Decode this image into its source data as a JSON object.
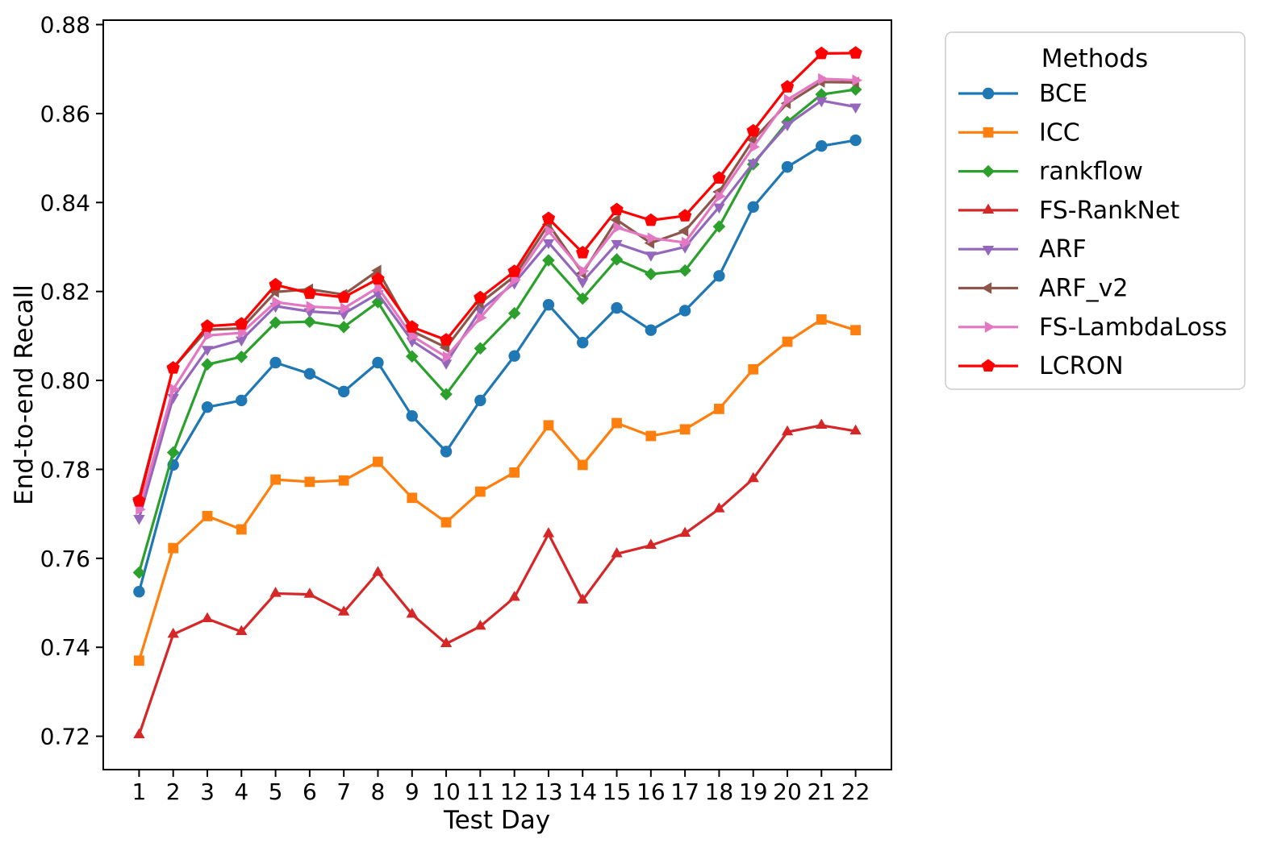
{
  "chart_data": {
    "type": "line",
    "title": "",
    "xlabel": "Test Day",
    "ylabel": "End-to-end Recall",
    "x": [
      1,
      2,
      3,
      4,
      5,
      6,
      7,
      8,
      9,
      10,
      11,
      12,
      13,
      14,
      15,
      16,
      17,
      18,
      19,
      20,
      21,
      22
    ],
    "xticks": [
      1,
      2,
      3,
      4,
      5,
      6,
      7,
      8,
      9,
      10,
      11,
      12,
      13,
      14,
      15,
      16,
      17,
      18,
      19,
      20,
      21,
      22
    ],
    "yticks": [
      0.72,
      0.74,
      0.76,
      0.78,
      0.8,
      0.82,
      0.84,
      0.86,
      0.88
    ],
    "xlim": [
      -0.05,
      23.05
    ],
    "ylim": [
      0.7125,
      0.881
    ],
    "grid": false,
    "legend": {
      "title": "Methods",
      "position": "outside-upper-right"
    },
    "series": [
      {
        "name": "BCE",
        "color": "#1f77b4",
        "marker": "circle",
        "values": [
          0.7525,
          0.781,
          0.794,
          0.7955,
          0.804,
          0.8015,
          0.7975,
          0.804,
          0.792,
          0.784,
          0.7955,
          0.8055,
          0.817,
          0.8085,
          0.8163,
          0.8113,
          0.8157,
          0.8235,
          0.839,
          0.848,
          0.8527,
          0.854
        ]
      },
      {
        "name": "ICC",
        "color": "#ff7f0e",
        "marker": "square",
        "values": [
          0.737,
          0.7623,
          0.7695,
          0.7665,
          0.7777,
          0.7772,
          0.7775,
          0.7817,
          0.7736,
          0.7681,
          0.775,
          0.7793,
          0.7899,
          0.781,
          0.7904,
          0.7875,
          0.789,
          0.7936,
          0.8025,
          0.8087,
          0.8137,
          0.8113
        ]
      },
      {
        "name": "rankflow",
        "color": "#2ca02c",
        "marker": "diamond",
        "values": [
          0.7568,
          0.7838,
          0.8036,
          0.8053,
          0.813,
          0.8132,
          0.812,
          0.8176,
          0.8054,
          0.7969,
          0.8072,
          0.8151,
          0.827,
          0.8184,
          0.8272,
          0.8239,
          0.8247,
          0.8346,
          0.8486,
          0.8581,
          0.8643,
          0.8654
        ]
      },
      {
        "name": "FS-RankNet",
        "color": "#d62728",
        "marker": "triangle-up",
        "values": [
          0.7203,
          0.7429,
          0.7464,
          0.7435,
          0.7521,
          0.7519,
          0.7479,
          0.7568,
          0.7474,
          0.7408,
          0.7447,
          0.7512,
          0.7655,
          0.7506,
          0.761,
          0.7629,
          0.7656,
          0.7711,
          0.7779,
          0.7884,
          0.7899,
          0.7886
        ]
      },
      {
        "name": "ARF",
        "color": "#9467bd",
        "marker": "triangle-down",
        "values": [
          0.769,
          0.7962,
          0.807,
          0.8091,
          0.8167,
          0.8155,
          0.815,
          0.8195,
          0.8089,
          0.8039,
          0.8158,
          0.8219,
          0.831,
          0.8222,
          0.8308,
          0.8282,
          0.83,
          0.839,
          0.8489,
          0.8575,
          0.8629,
          0.8615
        ]
      },
      {
        "name": "ARF_v2",
        "color": "#8c564b",
        "marker": "triangle-left",
        "values": [
          0.7736,
          0.8028,
          0.8114,
          0.8117,
          0.8199,
          0.8205,
          0.8193,
          0.8247,
          0.8111,
          0.8074,
          0.8174,
          0.8234,
          0.8351,
          0.8241,
          0.8361,
          0.8309,
          0.8336,
          0.8424,
          0.8541,
          0.8623,
          0.8671,
          0.867
        ]
      },
      {
        "name": "FS-LambdaLoss",
        "color": "#e377c2",
        "marker": "triangle-right",
        "values": [
          0.771,
          0.798,
          0.8101,
          0.8107,
          0.8176,
          0.8166,
          0.8162,
          0.8209,
          0.81,
          0.8053,
          0.8141,
          0.8226,
          0.8336,
          0.8246,
          0.8344,
          0.832,
          0.831,
          0.8414,
          0.8525,
          0.8631,
          0.8678,
          0.8675
        ]
      },
      {
        "name": "LCRON",
        "color": "#ff0000",
        "marker": "pentagon",
        "values": [
          0.7729,
          0.8028,
          0.8122,
          0.8127,
          0.8215,
          0.8196,
          0.8187,
          0.8228,
          0.812,
          0.8091,
          0.8186,
          0.8245,
          0.8364,
          0.8287,
          0.8384,
          0.836,
          0.837,
          0.8455,
          0.8561,
          0.866,
          0.8735,
          0.8736
        ]
      }
    ]
  }
}
